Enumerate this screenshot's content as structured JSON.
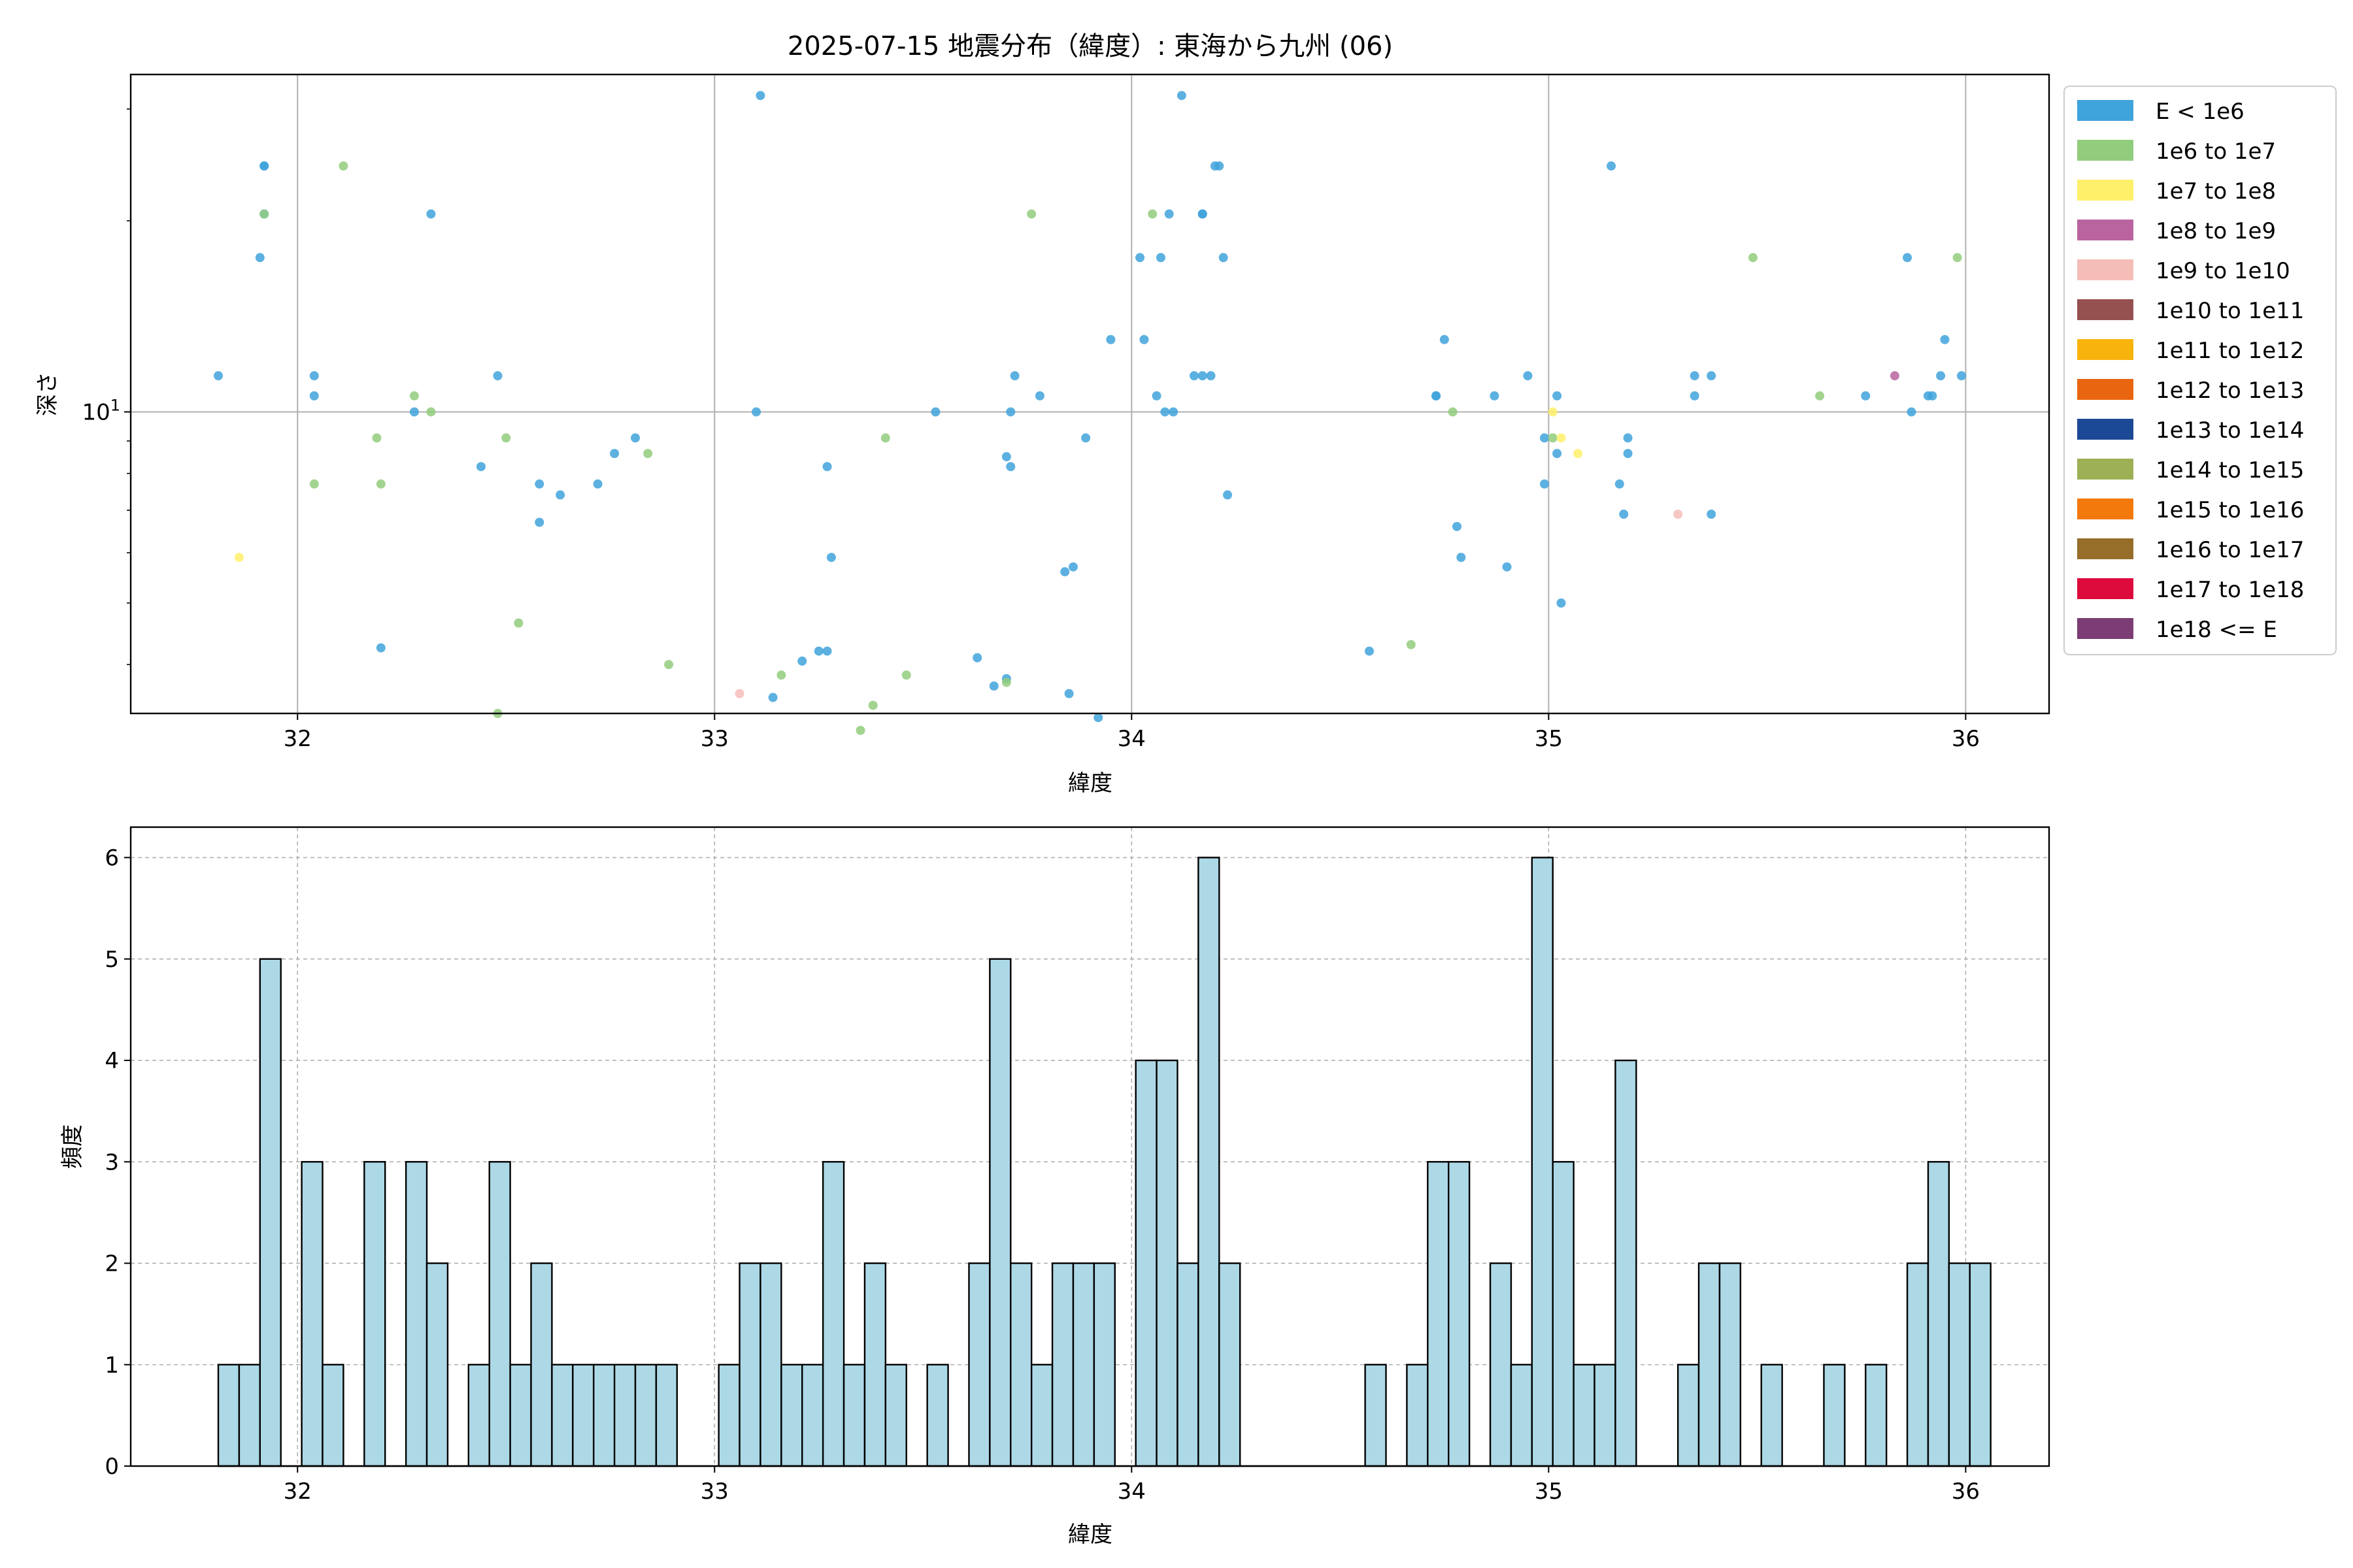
{
  "chart_data": [
    {
      "type": "scatter",
      "title": "2025-07-15 地震分布（緯度）: 東海から九州 (06)",
      "xlabel": "緯度",
      "ylabel": "深さ",
      "xlim": [
        31.6,
        36.2
      ],
      "ylim": [
        3.35,
        34
      ],
      "yscale": "log",
      "xticks": [
        32,
        33,
        34,
        35,
        36
      ],
      "xtick_labels": [
        "32",
        "33",
        "34",
        "35",
        "36"
      ],
      "yticks": [
        10
      ],
      "ytick_labels": [
        "10"
      ],
      "ytick_label_sup": "1",
      "grid": true,
      "legend_position": "outside-right",
      "legend": [
        {
          "label": "E < 1e6",
          "color": "#3fa3dc"
        },
        {
          "label": "1e6 to 1e7",
          "color": "#92cc7d"
        },
        {
          "label": "1e7 to 1e8",
          "color": "#fff06b"
        },
        {
          "label": "1e8 to 1e9",
          "color": "#b9649f"
        },
        {
          "label": "1e9 to 1e10",
          "color": "#f5bdb8"
        },
        {
          "label": "1e10 to 1e11",
          "color": "#955050"
        },
        {
          "label": "1e11 to 1e12",
          "color": "#f9b30d"
        },
        {
          "label": "1e12 to 1e13",
          "color": "#ea6510"
        },
        {
          "label": "1e13 to 1e14",
          "color": "#1c4996"
        },
        {
          "label": "1e14 to 1e15",
          "color": "#9db055"
        },
        {
          "label": "1e15 to 1e16",
          "color": "#f4790d"
        },
        {
          "label": "1e16 to 1e17",
          "color": "#966e2a"
        },
        {
          "label": "1e17 to 1e18",
          "color": "#dc0b3c"
        },
        {
          "label": "1e18 <= E",
          "color": "#7b3d73"
        }
      ],
      "series": [
        {
          "name": "E < 1e6",
          "color": "#3fa3dc",
          "points": [
            [
              31.81,
              11.4
            ],
            [
              31.92,
              24.4
            ],
            [
              31.92,
              24.4
            ],
            [
              31.92,
              20.5
            ],
            [
              31.91,
              17.5
            ],
            [
              32.04,
              11.4
            ],
            [
              32.04,
              10.6
            ],
            [
              32.2,
              4.25
            ],
            [
              32.28,
              10.0
            ],
            [
              32.32,
              20.5
            ],
            [
              32.44,
              8.2
            ],
            [
              32.48,
              11.4
            ],
            [
              32.58,
              7.7
            ],
            [
              32.58,
              6.7
            ],
            [
              32.63,
              7.4
            ],
            [
              32.72,
              7.7
            ],
            [
              32.76,
              8.6
            ],
            [
              32.81,
              9.1
            ],
            [
              33.1,
              10.0
            ],
            [
              33.11,
              31.5
            ],
            [
              33.14,
              3.55
            ],
            [
              33.21,
              4.05
            ],
            [
              33.25,
              4.2
            ],
            [
              33.27,
              4.2
            ],
            [
              33.27,
              8.2
            ],
            [
              33.28,
              5.9
            ],
            [
              33.53,
              10.0
            ],
            [
              33.63,
              4.1
            ],
            [
              33.67,
              3.7
            ],
            [
              33.7,
              3.8
            ],
            [
              33.7,
              8.5
            ],
            [
              33.71,
              8.2
            ],
            [
              33.71,
              10.0
            ],
            [
              33.72,
              11.4
            ],
            [
              33.78,
              10.6
            ],
            [
              33.84,
              5.6
            ],
            [
              33.85,
              3.6
            ],
            [
              33.86,
              5.7
            ],
            [
              33.89,
              9.1
            ],
            [
              33.92,
              3.3
            ],
            [
              33.95,
              13.0
            ],
            [
              34.02,
              17.5
            ],
            [
              34.03,
              13.0
            ],
            [
              34.06,
              10.6
            ],
            [
              34.07,
              17.5
            ],
            [
              34.08,
              10.0
            ],
            [
              34.09,
              20.5
            ],
            [
              34.1,
              10.0
            ],
            [
              34.12,
              31.5
            ],
            [
              34.15,
              11.4
            ],
            [
              34.17,
              20.5
            ],
            [
              34.17,
              20.5
            ],
            [
              34.17,
              11.4
            ],
            [
              34.19,
              11.4
            ],
            [
              34.2,
              24.4
            ],
            [
              34.21,
              24.4
            ],
            [
              34.22,
              17.5
            ],
            [
              34.23,
              7.4
            ],
            [
              34.57,
              4.2
            ],
            [
              34.73,
              10.6
            ],
            [
              34.73,
              10.6
            ],
            [
              34.75,
              13.0
            ],
            [
              34.78,
              6.6
            ],
            [
              34.79,
              5.9
            ],
            [
              34.87,
              10.6
            ],
            [
              34.9,
              5.7
            ],
            [
              34.95,
              11.4
            ],
            [
              34.99,
              7.7
            ],
            [
              34.99,
              9.1
            ],
            [
              35.02,
              10.6
            ],
            [
              35.02,
              8.6
            ],
            [
              35.03,
              5.0
            ],
            [
              35.15,
              24.4
            ],
            [
              35.17,
              7.7
            ],
            [
              35.18,
              6.9
            ],
            [
              35.19,
              8.6
            ],
            [
              35.19,
              9.1
            ],
            [
              35.35,
              11.4
            ],
            [
              35.35,
              10.6
            ],
            [
              35.39,
              6.9
            ],
            [
              35.39,
              11.4
            ],
            [
              35.76,
              10.6
            ],
            [
              35.86,
              17.5
            ],
            [
              35.87,
              10.0
            ],
            [
              35.91,
              10.6
            ],
            [
              35.92,
              10.6
            ],
            [
              35.94,
              11.4
            ],
            [
              35.95,
              13.0
            ],
            [
              35.99,
              11.4
            ]
          ]
        },
        {
          "name": "1e6 to 1e7",
          "color": "#92cc7d",
          "points": [
            [
              31.92,
              20.5
            ],
            [
              32.04,
              7.7
            ],
            [
              32.11,
              24.4
            ],
            [
              32.19,
              9.1
            ],
            [
              32.2,
              7.7
            ],
            [
              32.28,
              10.6
            ],
            [
              32.32,
              10.0
            ],
            [
              32.48,
              3.35
            ],
            [
              32.5,
              9.1
            ],
            [
              32.53,
              4.65
            ],
            [
              32.84,
              8.6
            ],
            [
              32.89,
              4.0
            ],
            [
              33.16,
              3.85
            ],
            [
              33.35,
              3.15
            ],
            [
              33.38,
              3.45
            ],
            [
              33.41,
              9.1
            ],
            [
              33.46,
              3.85
            ],
            [
              33.7,
              3.75
            ],
            [
              33.76,
              20.5
            ],
            [
              34.05,
              20.5
            ],
            [
              34.67,
              4.3
            ],
            [
              34.77,
              10.0
            ],
            [
              35.01,
              9.1
            ],
            [
              35.49,
              17.5
            ],
            [
              35.65,
              10.6
            ],
            [
              35.98,
              17.5
            ]
          ]
        },
        {
          "name": "1e7 to 1e8",
          "color": "#fff06b",
          "points": [
            [
              31.86,
              5.9
            ],
            [
              35.01,
              10.0
            ],
            [
              35.03,
              9.1
            ],
            [
              35.07,
              8.6
            ]
          ]
        },
        {
          "name": "1e8 to 1e9",
          "color": "#b9649f",
          "points": [
            [
              35.83,
              11.4
            ]
          ]
        },
        {
          "name": "1e9 to 1e10",
          "color": "#f5bdb8",
          "points": [
            [
              33.06,
              3.6
            ],
            [
              35.31,
              6.9
            ]
          ]
        }
      ]
    },
    {
      "type": "bar",
      "xlabel": "緯度",
      "ylabel": "頻度",
      "xlim": [
        31.6,
        36.2
      ],
      "ylim": [
        0,
        6.3
      ],
      "xticks": [
        32,
        33,
        34,
        35,
        36
      ],
      "xtick_labels": [
        "32",
        "33",
        "34",
        "35",
        "36"
      ],
      "yticks": [
        0,
        1,
        2,
        3,
        4,
        5,
        6
      ],
      "ytick_labels": [
        "0",
        "1",
        "2",
        "3",
        "4",
        "5",
        "6"
      ],
      "grid": true,
      "bar_color": "#add8e6",
      "bin_start": 31.81,
      "bin_width": 0.05,
      "values": [
        1,
        1,
        5,
        0,
        3,
        1,
        0,
        3,
        0,
        3,
        2,
        0,
        1,
        3,
        1,
        2,
        1,
        1,
        1,
        1,
        1,
        1,
        0,
        0,
        1,
        2,
        2,
        1,
        1,
        3,
        1,
        2,
        1,
        0,
        1,
        0,
        2,
        5,
        2,
        1,
        2,
        2,
        2,
        0,
        4,
        4,
        2,
        6,
        2,
        0,
        0,
        0,
        0,
        0,
        0,
        1,
        0,
        1,
        3,
        3,
        0,
        2,
        1,
        6,
        3,
        1,
        1,
        4,
        0,
        0,
        1,
        2,
        2,
        0,
        1,
        0,
        0,
        1,
        0,
        1,
        0,
        2,
        3,
        2,
        2
      ]
    }
  ]
}
